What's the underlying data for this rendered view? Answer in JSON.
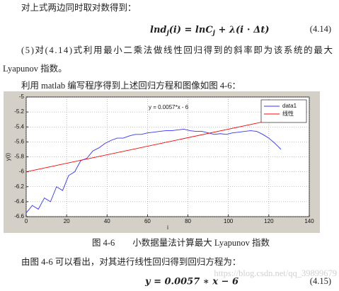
{
  "doc": {
    "line1": "对上式两边同时取对数得到：",
    "eq1": {
      "parts": [
        "lnd",
        "j",
        "(i) = lnC",
        "j",
        " + λ(i ⋅ Δt)"
      ],
      "number": "(4.14)"
    },
    "para1": "(5)对(4.14)式利用最小二乘法做线性回归得到的斜率即为该系统的最大",
    "para2": "Lyapunov 指数。",
    "para3": "利用 matlab 编写程序得到上述回归方程和图像如图 4-6：",
    "caption": "图 4-6　　小数据量法计算最大 Lyapunov 指数",
    "para4": "由图 4-6 可以看出，对其进行线性回归得到回归方程为：",
    "eq2": {
      "text": "y = 0.0057 ∗ x − 6",
      "number": "(4.15)"
    },
    "watermark": "https://blog.csdn.net/qq_39899679"
  },
  "chart_data": {
    "type": "line",
    "annotation": "y = 0.0057*x - 6",
    "xlabel": "i",
    "ylabel": "y(i)",
    "xlim": [
      0,
      140
    ],
    "ylim": [
      -6.6,
      -5
    ],
    "xticks": [
      0,
      20,
      40,
      60,
      80,
      100,
      120,
      140
    ],
    "yticks": [
      -5,
      -5.2,
      -5.4,
      -5.6,
      -5.8,
      -6,
      -6.2,
      -6.4,
      -6.6
    ],
    "grid": true,
    "legend": "top-right",
    "series": [
      {
        "name": "data1",
        "color": "#3333ff",
        "x": [
          0,
          3,
          6,
          9,
          12,
          15,
          18,
          21,
          24,
          27,
          30,
          33,
          36,
          39,
          42,
          45,
          48,
          51,
          54,
          57,
          60,
          63,
          66,
          69,
          72,
          75,
          78,
          81,
          84,
          87,
          90,
          93,
          96,
          99,
          102,
          105,
          108,
          111,
          114,
          117,
          120,
          123,
          126
        ],
        "values": [
          -6.55,
          -6.45,
          -6.5,
          -6.35,
          -6.4,
          -6.2,
          -6.25,
          -6.05,
          -6.0,
          -5.85,
          -5.82,
          -5.72,
          -5.68,
          -5.62,
          -5.58,
          -5.55,
          -5.55,
          -5.52,
          -5.5,
          -5.5,
          -5.48,
          -5.47,
          -5.46,
          -5.45,
          -5.45,
          -5.44,
          -5.43,
          -5.45,
          -5.46,
          -5.46,
          -5.48,
          -5.5,
          -5.49,
          -5.5,
          -5.48,
          -5.47,
          -5.46,
          -5.45,
          -5.46,
          -5.5,
          -5.55,
          -5.62,
          -5.7
        ]
      },
      {
        "name": "线性",
        "color": "#ff0000",
        "x": [
          0,
          127
        ],
        "values": [
          -6,
          -5.276
        ]
      }
    ]
  }
}
